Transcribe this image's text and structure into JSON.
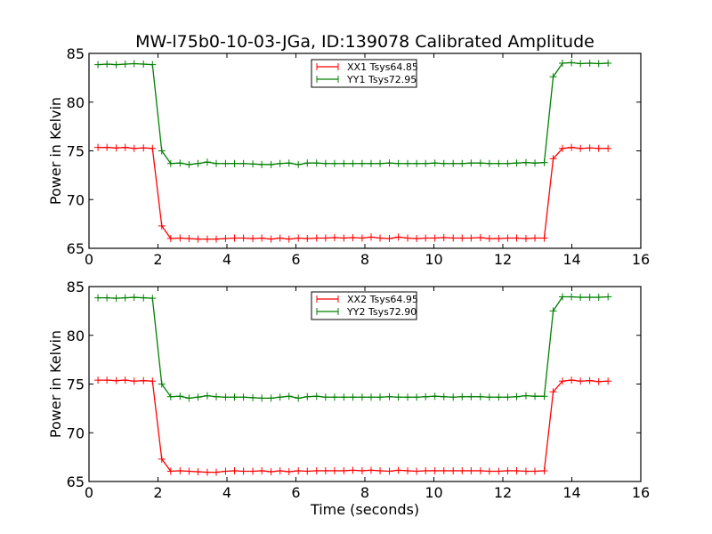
{
  "chart_data": [
    {
      "type": "line",
      "title": "MW-l75b0-10-03-JGa, ID:139078 Calibrated Amplitude",
      "xlabel": "",
      "ylabel": "Power in Kelvin",
      "xlim": [
        0,
        16
      ],
      "ylim": [
        65,
        85
      ],
      "xticks": [
        "0",
        "2",
        "4",
        "6",
        "8",
        "10",
        "12",
        "14",
        "16"
      ],
      "yticks": [
        "65",
        "70",
        "75",
        "80",
        "85"
      ],
      "grid": false,
      "legend_position": "top-center",
      "x": [
        0.26,
        0.52,
        0.79,
        1.05,
        1.31,
        1.58,
        1.84,
        2.11,
        2.37,
        2.64,
        2.9,
        3.16,
        3.43,
        3.69,
        3.96,
        4.22,
        4.48,
        4.75,
        5.01,
        5.28,
        5.54,
        5.8,
        6.07,
        6.33,
        6.6,
        6.86,
        7.12,
        7.39,
        7.65,
        7.92,
        8.18,
        8.44,
        8.71,
        8.97,
        9.24,
        9.5,
        9.76,
        10.03,
        10.29,
        10.56,
        10.82,
        11.08,
        11.35,
        11.61,
        11.88,
        12.14,
        12.4,
        12.67,
        12.93,
        13.2,
        13.46,
        13.73,
        13.99,
        14.25,
        14.52,
        14.78,
        15.05
      ],
      "series": [
        {
          "name": "XX1 Tsys64.85",
          "color": "#ff0000",
          "values": [
            75.35,
            75.35,
            75.3,
            75.35,
            75.25,
            75.3,
            75.25,
            67.3,
            66.0,
            66.05,
            66.0,
            65.95,
            65.95,
            65.95,
            66.0,
            66.05,
            66.05,
            66.0,
            66.05,
            65.95,
            66.05,
            65.95,
            66.05,
            66.0,
            66.05,
            66.05,
            66.1,
            66.05,
            66.1,
            66.05,
            66.15,
            66.05,
            66.0,
            66.15,
            66.05,
            66.0,
            66.05,
            66.05,
            66.1,
            66.05,
            66.05,
            66.05,
            66.1,
            66.0,
            66.0,
            66.05,
            66.05,
            66.0,
            66.05,
            66.05,
            74.2,
            75.25,
            75.35,
            75.25,
            75.3,
            75.25,
            75.25
          ]
        },
        {
          "name": "YY1 Tsys72.95",
          "color": "#008000",
          "values": [
            83.85,
            83.9,
            83.85,
            83.9,
            83.95,
            83.9,
            83.85,
            75.0,
            73.7,
            73.75,
            73.6,
            73.7,
            73.85,
            73.7,
            73.7,
            73.7,
            73.7,
            73.65,
            73.6,
            73.6,
            73.7,
            73.75,
            73.6,
            73.75,
            73.75,
            73.7,
            73.7,
            73.7,
            73.7,
            73.7,
            73.7,
            73.7,
            73.75,
            73.7,
            73.7,
            73.7,
            73.7,
            73.75,
            73.7,
            73.7,
            73.7,
            73.75,
            73.75,
            73.7,
            73.7,
            73.7,
            73.75,
            73.8,
            73.75,
            73.8,
            82.6,
            84.0,
            84.05,
            83.95,
            84.0,
            83.95,
            84.0
          ]
        }
      ]
    },
    {
      "type": "line",
      "title": "",
      "xlabel": "Time (seconds)",
      "ylabel": "Power in Kelvin",
      "xlim": [
        0,
        16
      ],
      "ylim": [
        65,
        85
      ],
      "xticks": [
        "0",
        "2",
        "4",
        "6",
        "8",
        "10",
        "12",
        "14",
        "16"
      ],
      "yticks": [
        "65",
        "70",
        "75",
        "80",
        "85"
      ],
      "grid": false,
      "legend_position": "top-center",
      "x": [
        0.26,
        0.52,
        0.79,
        1.05,
        1.31,
        1.58,
        1.84,
        2.11,
        2.37,
        2.64,
        2.9,
        3.16,
        3.43,
        3.69,
        3.96,
        4.22,
        4.48,
        4.75,
        5.01,
        5.28,
        5.54,
        5.8,
        6.07,
        6.33,
        6.6,
        6.86,
        7.12,
        7.39,
        7.65,
        7.92,
        8.18,
        8.44,
        8.71,
        8.97,
        9.24,
        9.5,
        9.76,
        10.03,
        10.29,
        10.56,
        10.82,
        11.08,
        11.35,
        11.61,
        11.88,
        12.14,
        12.4,
        12.67,
        12.93,
        13.2,
        13.46,
        13.73,
        13.99,
        14.25,
        14.52,
        14.78,
        15.05
      ],
      "series": [
        {
          "name": "XX2 Tsys64.95",
          "color": "#ff0000",
          "values": [
            75.4,
            75.4,
            75.35,
            75.4,
            75.3,
            75.35,
            75.3,
            67.3,
            66.05,
            66.1,
            66.05,
            66.0,
            65.95,
            65.95,
            66.05,
            66.1,
            66.05,
            66.05,
            66.1,
            66.0,
            66.1,
            66.0,
            66.1,
            66.05,
            66.1,
            66.1,
            66.1,
            66.1,
            66.15,
            66.1,
            66.15,
            66.1,
            66.05,
            66.15,
            66.1,
            66.05,
            66.1,
            66.1,
            66.1,
            66.1,
            66.1,
            66.1,
            66.1,
            66.05,
            66.05,
            66.1,
            66.1,
            66.05,
            66.05,
            66.1,
            74.2,
            75.3,
            75.4,
            75.3,
            75.35,
            75.25,
            75.3
          ]
        },
        {
          "name": "YY2 Tsys72.90",
          "color": "#008000",
          "values": [
            83.85,
            83.85,
            83.8,
            83.85,
            83.9,
            83.85,
            83.8,
            75.0,
            73.7,
            73.75,
            73.55,
            73.65,
            73.8,
            73.7,
            73.65,
            73.65,
            73.65,
            73.6,
            73.55,
            73.55,
            73.65,
            73.75,
            73.55,
            73.7,
            73.75,
            73.65,
            73.65,
            73.65,
            73.65,
            73.65,
            73.65,
            73.65,
            73.7,
            73.65,
            73.65,
            73.65,
            73.7,
            73.75,
            73.7,
            73.65,
            73.7,
            73.7,
            73.7,
            73.65,
            73.65,
            73.65,
            73.7,
            73.8,
            73.75,
            73.75,
            82.5,
            83.95,
            83.95,
            83.9,
            83.9,
            83.9,
            83.95
          ]
        }
      ]
    }
  ]
}
